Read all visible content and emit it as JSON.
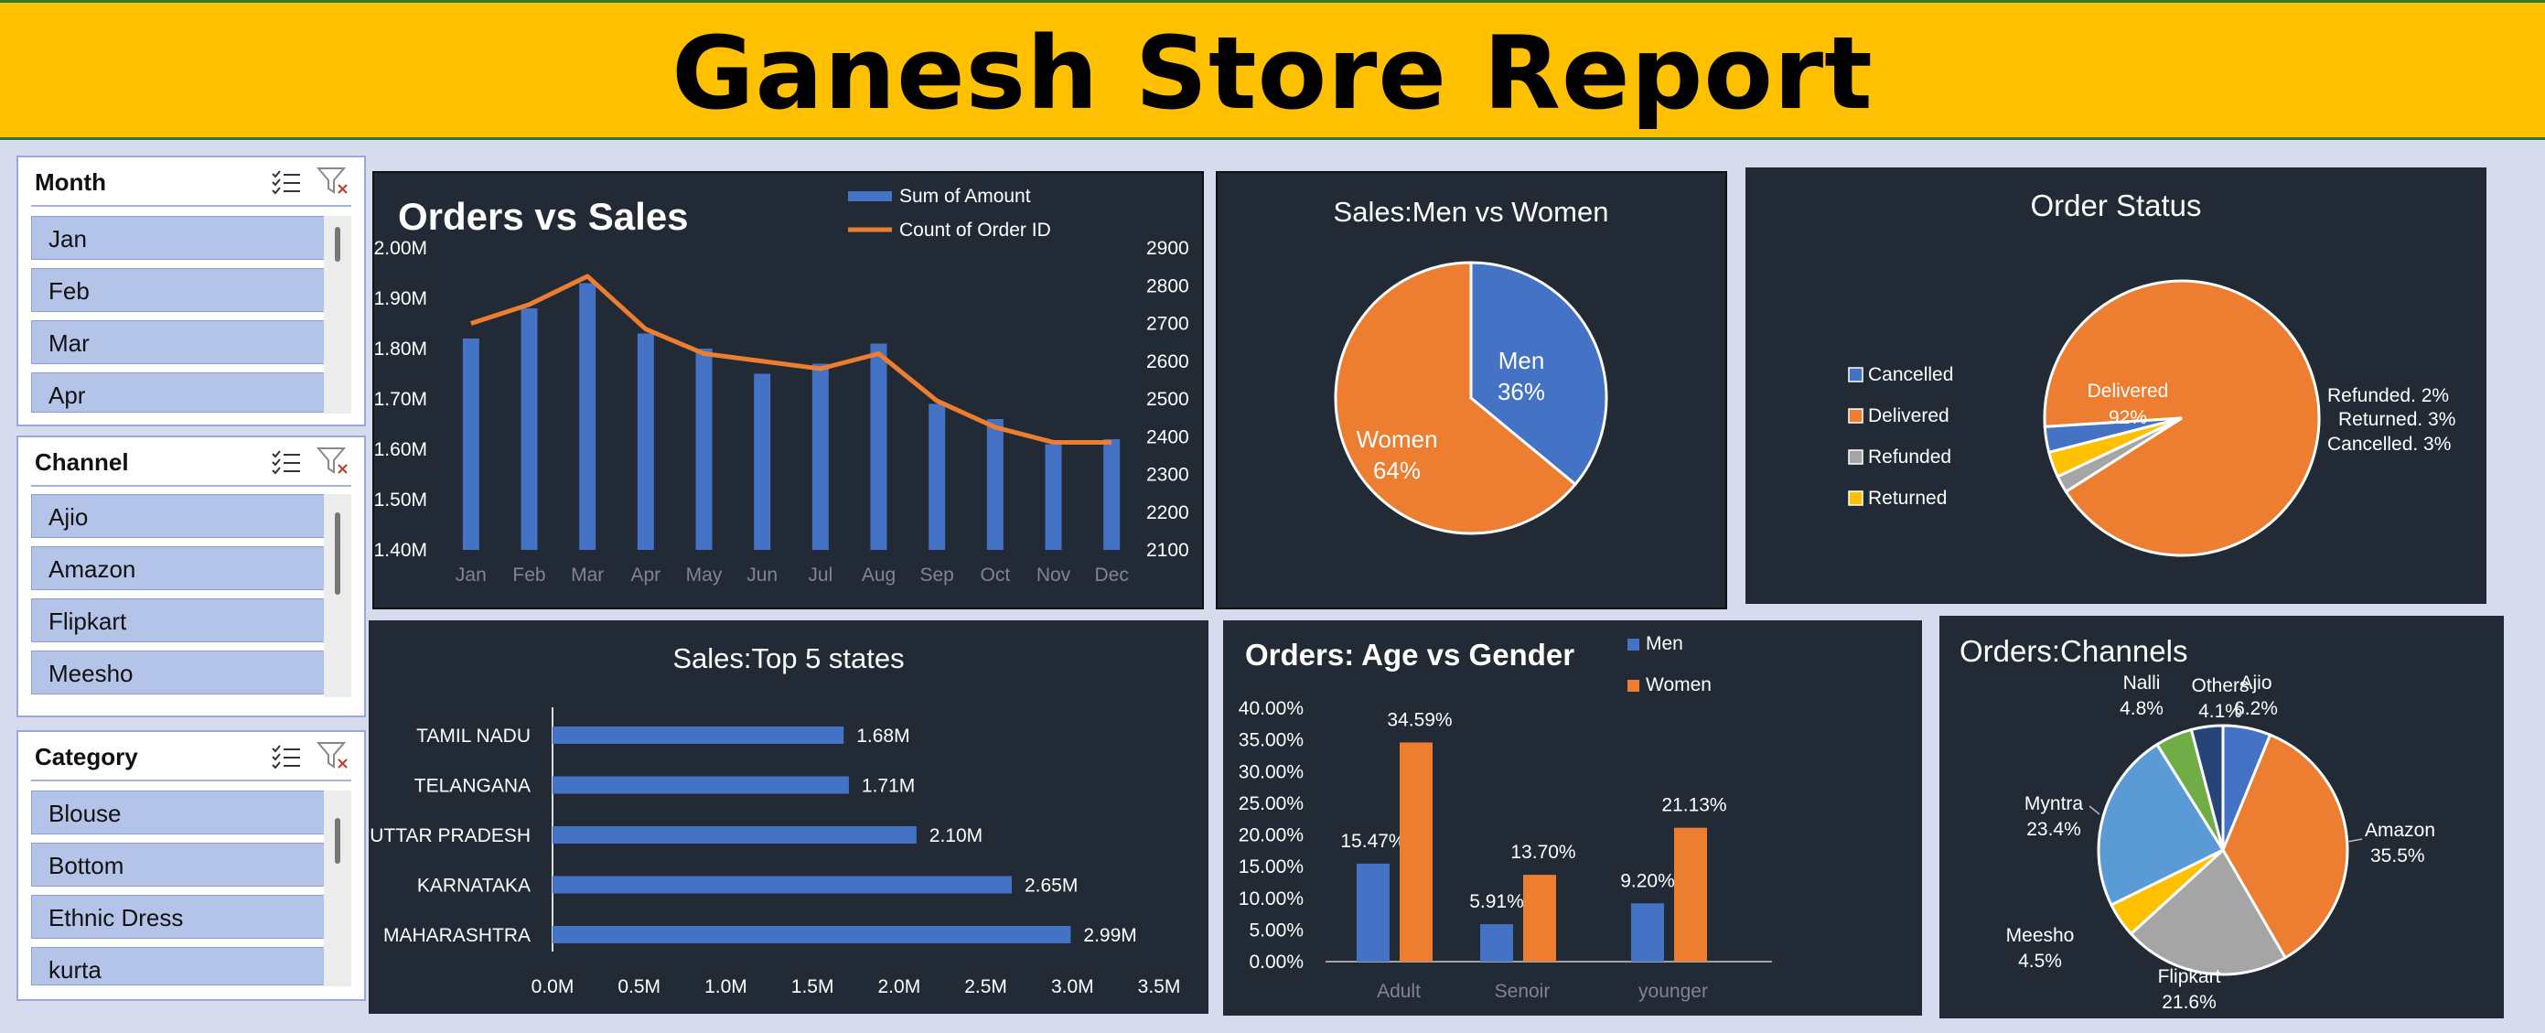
{
  "header": {
    "title": "Ganesh Store Report"
  },
  "slicers": {
    "month": {
      "title": "Month",
      "items": [
        "Jan",
        "Feb",
        "Mar",
        "Apr"
      ]
    },
    "channel": {
      "title": "Channel",
      "items": [
        "Ajio",
        "Amazon",
        "Flipkart",
        "Meesho"
      ]
    },
    "category": {
      "title": "Category",
      "items": [
        "Blouse",
        "Bottom",
        "Ethnic Dress",
        "kurta"
      ]
    },
    "icons": [
      "multi-select-icon",
      "clear-filter-icon"
    ]
  },
  "charts": {
    "orders_vs_sales": {
      "title": "Orders vs Sales",
      "chart_data": {
        "type": "bar",
        "categories": [
          "Jan",
          "Feb",
          "Mar",
          "Apr",
          "May",
          "Jun",
          "Jul",
          "Aug",
          "Sep",
          "Oct",
          "Nov",
          "Dec"
        ],
        "series": [
          {
            "name": "Sum of Amount",
            "type": "bar",
            "axis": "left",
            "values": [
              1.82,
              1.88,
              1.93,
              1.83,
              1.8,
              1.75,
              1.77,
              1.81,
              1.69,
              1.66,
              1.61,
              1.62
            ]
          },
          {
            "name": "Count of Order ID",
            "type": "line",
            "axis": "right",
            "values": [
              2700,
              2750,
              2825,
              2685,
              2620,
              2600,
              2580,
              2620,
              2495,
              2425,
              2385,
              2385
            ]
          }
        ],
        "y_left": {
          "ticks": [
            "2.00M",
            "1.90M",
            "1.80M",
            "1.70M",
            "1.60M",
            "1.50M",
            "1.40M"
          ],
          "min": 1.4,
          "max": 2.0
        },
        "y_right": {
          "ticks": [
            "2900",
            "2800",
            "2700",
            "2600",
            "2500",
            "2400",
            "2300",
            "2200",
            "2100"
          ],
          "min": 2100,
          "max": 2900
        },
        "colors": {
          "bar": "#4472c4",
          "line": "#ed7d31"
        }
      }
    },
    "men_vs_women": {
      "title": "Sales:Men vs Women",
      "chart_data": {
        "type": "pie",
        "slices": [
          {
            "label": "Men",
            "pct_text": "36%",
            "value": 36,
            "color": "#4472c4"
          },
          {
            "label": "Women",
            "pct_text": "64%",
            "value": 64,
            "color": "#ed7d31"
          }
        ]
      }
    },
    "order_status": {
      "title": "Order Status",
      "chart_data": {
        "type": "pie",
        "legend": [
          "Cancelled",
          "Delivered",
          "Refunded",
          "Returned"
        ],
        "legend_colors": [
          "#4472c4",
          "#ed7d31",
          "#a5a5a5",
          "#ffc000"
        ],
        "slices": [
          {
            "label": "Delivered",
            "text": "92%",
            "value": 92,
            "color": "#ed7d31"
          },
          {
            "label": "Refunded",
            "text": "Refunded. 2%",
            "value": 2,
            "color": "#a5a5a5"
          },
          {
            "label": "Returned",
            "text": "Returned. 3%",
            "value": 3,
            "color": "#ffc000"
          },
          {
            "label": "Cancelled",
            "text": "Cancelled. 3%",
            "value": 3,
            "color": "#4472c4"
          }
        ]
      }
    },
    "top5_states": {
      "title": "Sales:Top 5 states",
      "chart_data": {
        "type": "bar",
        "orientation": "horizontal",
        "categories": [
          "TAMIL NADU",
          "TELANGANA",
          "UTTAR PRADESH",
          "KARNATAKA",
          "MAHARASHTRA"
        ],
        "values": [
          1.68,
          1.71,
          2.1,
          2.65,
          2.99
        ],
        "value_labels": [
          "1.68M",
          "1.71M",
          "2.10M",
          "2.65M",
          "2.99M"
        ],
        "x_ticks": [
          "0.0M",
          "0.5M",
          "1.0M",
          "1.5M",
          "2.0M",
          "2.5M",
          "3.0M",
          "3.5M"
        ],
        "xlim": [
          0,
          3.5
        ],
        "color": "#4472c4"
      }
    },
    "age_vs_gender": {
      "title": "Orders:  Age vs Gender",
      "chart_data": {
        "type": "bar",
        "categories": [
          "Adult",
          "Senoir",
          "younger"
        ],
        "series": [
          {
            "name": "Men",
            "values": [
              15.47,
              5.91,
              9.2
            ],
            "labels": [
              "15.47%",
              "5.91%",
              "9.20%"
            ],
            "color": "#4472c4"
          },
          {
            "name": "Women",
            "values": [
              34.59,
              13.7,
              21.13
            ],
            "labels": [
              "34.59%",
              "13.70%",
              "21.13%"
            ],
            "color": "#ed7d31"
          }
        ],
        "y_ticks": [
          "40.00%",
          "35.00%",
          "30.00%",
          "25.00%",
          "20.00%",
          "15.00%",
          "10.00%",
          "5.00%",
          "0.00%"
        ],
        "ylim": [
          0,
          40
        ]
      }
    },
    "channels": {
      "title": "Orders:Channels",
      "chart_data": {
        "type": "pie",
        "slices": [
          {
            "label": "Ajio",
            "pct": "6.2%",
            "value": 6.2,
            "color": "#4472c4"
          },
          {
            "label": "Amazon",
            "pct": "35.5%",
            "value": 35.5,
            "color": "#ed7d31"
          },
          {
            "label": "Flipkart",
            "pct": "21.6%",
            "value": 21.6,
            "color": "#a5a5a5"
          },
          {
            "label": "Meesho",
            "pct": "4.5%",
            "value": 4.5,
            "color": "#ffc000"
          },
          {
            "label": "Myntra",
            "pct": "23.4%",
            "value": 23.4,
            "color": "#5b9bd5"
          },
          {
            "label": "Nalli",
            "pct": "4.8%",
            "value": 4.8,
            "color": "#70ad47"
          },
          {
            "label": "Others",
            "pct": "4.1%",
            "value": 4.1,
            "color": "#264478"
          }
        ]
      }
    }
  }
}
